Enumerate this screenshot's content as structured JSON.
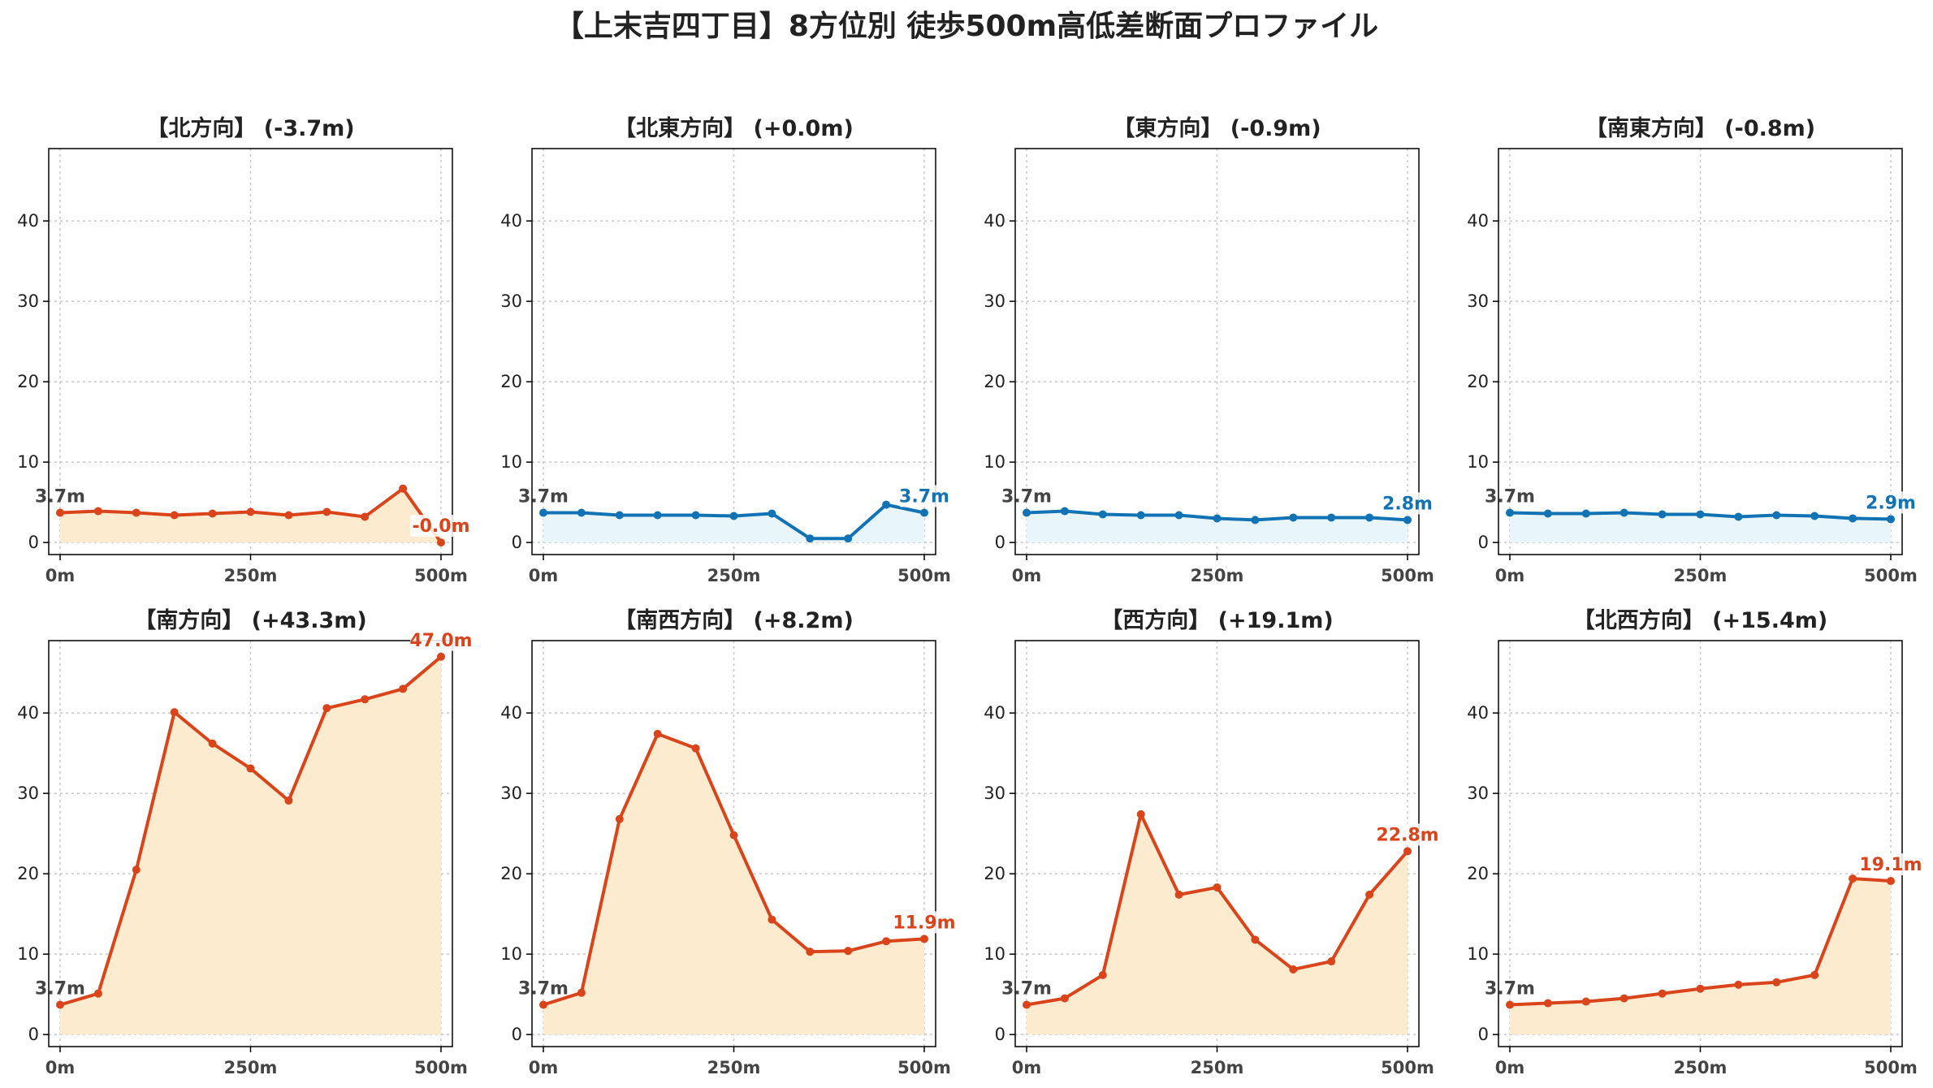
{
  "suptitle": "【上末吉四丁目】8方位別 徒歩500m高低差断面プロファイル",
  "x_tick_labels": [
    "0m",
    "250m",
    "500m"
  ],
  "colors": {
    "rise_line": "#d9441a",
    "rise_fill": "#fdebd0",
    "fall_line": "#1273b4",
    "fall_fill": "#e8f6fb",
    "start_label": "#444444"
  },
  "chart_data": [
    {
      "type": "area",
      "title": "【北方向】 (-3.7m)",
      "x": [
        0,
        50,
        100,
        150,
        200,
        250,
        300,
        350,
        400,
        450,
        500
      ],
      "y": [
        3.7,
        3.9,
        3.7,
        3.4,
        3.6,
        3.8,
        3.4,
        3.8,
        3.2,
        6.7,
        0.0
      ],
      "start_label": "3.7m",
      "end_label": "-0.0m",
      "trend": "rise",
      "xlim": [
        0,
        500
      ],
      "ylim": [
        -1.5,
        49
      ],
      "yticks": [
        0,
        10,
        20,
        30,
        40
      ],
      "grid": true
    },
    {
      "type": "area",
      "title": "【北東方向】 (+0.0m)",
      "x": [
        0,
        50,
        100,
        150,
        200,
        250,
        300,
        350,
        400,
        450,
        500
      ],
      "y": [
        3.7,
        3.7,
        3.4,
        3.4,
        3.4,
        3.3,
        3.6,
        0.5,
        0.5,
        4.7,
        3.7
      ],
      "start_label": "3.7m",
      "end_label": "3.7m",
      "trend": "fall",
      "xlim": [
        0,
        500
      ],
      "ylim": [
        -1.5,
        49
      ],
      "yticks": [
        0,
        10,
        20,
        30,
        40
      ],
      "grid": true
    },
    {
      "type": "area",
      "title": "【東方向】 (-0.9m)",
      "x": [
        0,
        50,
        100,
        150,
        200,
        250,
        300,
        350,
        400,
        450,
        500
      ],
      "y": [
        3.7,
        3.9,
        3.5,
        3.4,
        3.4,
        3.0,
        2.8,
        3.1,
        3.1,
        3.1,
        2.8
      ],
      "start_label": "3.7m",
      "end_label": "2.8m",
      "trend": "fall",
      "xlim": [
        0,
        500
      ],
      "ylim": [
        -1.5,
        49
      ],
      "yticks": [
        0,
        10,
        20,
        30,
        40
      ],
      "grid": true
    },
    {
      "type": "area",
      "title": "【南東方向】 (-0.8m)",
      "x": [
        0,
        50,
        100,
        150,
        200,
        250,
        300,
        350,
        400,
        450,
        500
      ],
      "y": [
        3.7,
        3.6,
        3.6,
        3.7,
        3.5,
        3.5,
        3.2,
        3.4,
        3.3,
        3.0,
        2.9
      ],
      "start_label": "3.7m",
      "end_label": "2.9m",
      "trend": "fall",
      "xlim": [
        0,
        500
      ],
      "ylim": [
        -1.5,
        49
      ],
      "yticks": [
        0,
        10,
        20,
        30,
        40
      ],
      "grid": true
    },
    {
      "type": "area",
      "title": "【南方向】 (+43.3m)",
      "x": [
        0,
        50,
        100,
        150,
        200,
        250,
        300,
        350,
        400,
        450,
        500
      ],
      "y": [
        3.7,
        5.1,
        20.5,
        40.1,
        36.2,
        33.1,
        29.1,
        40.6,
        41.7,
        43.0,
        47.0
      ],
      "start_label": "3.7m",
      "end_label": "47.0m",
      "trend": "rise",
      "xlim": [
        0,
        500
      ],
      "ylim": [
        -1.5,
        49
      ],
      "yticks": [
        0,
        10,
        20,
        30,
        40
      ],
      "grid": true
    },
    {
      "type": "area",
      "title": "【南西方向】 (+8.2m)",
      "x": [
        0,
        50,
        100,
        150,
        200,
        250,
        300,
        350,
        400,
        450,
        500
      ],
      "y": [
        3.7,
        5.2,
        26.8,
        37.4,
        35.6,
        24.8,
        14.3,
        10.3,
        10.4,
        11.6,
        11.9
      ],
      "start_label": "3.7m",
      "end_label": "11.9m",
      "trend": "rise",
      "xlim": [
        0,
        500
      ],
      "ylim": [
        -1.5,
        49
      ],
      "yticks": [
        0,
        10,
        20,
        30,
        40
      ],
      "grid": true
    },
    {
      "type": "area",
      "title": "【西方向】 (+19.1m)",
      "x": [
        0,
        50,
        100,
        150,
        200,
        250,
        300,
        350,
        400,
        450,
        500
      ],
      "y": [
        3.7,
        4.5,
        7.4,
        27.4,
        17.4,
        18.3,
        11.8,
        8.1,
        9.1,
        17.4,
        22.8
      ],
      "start_label": "3.7m",
      "end_label": "22.8m",
      "trend": "rise",
      "xlim": [
        0,
        500
      ],
      "ylim": [
        -1.5,
        49
      ],
      "yticks": [
        0,
        10,
        20,
        30,
        40
      ],
      "grid": true
    },
    {
      "type": "area",
      "title": "【北西方向】 (+15.4m)",
      "x": [
        0,
        50,
        100,
        150,
        200,
        250,
        300,
        350,
        400,
        450,
        500
      ],
      "y": [
        3.7,
        3.9,
        4.1,
        4.5,
        5.1,
        5.7,
        6.2,
        6.5,
        7.4,
        19.4,
        19.1
      ],
      "start_label": "3.7m",
      "end_label": "19.1m",
      "trend": "rise",
      "xlim": [
        0,
        500
      ],
      "ylim": [
        -1.5,
        49
      ],
      "yticks": [
        0,
        10,
        20,
        30,
        40
      ],
      "grid": true
    }
  ]
}
